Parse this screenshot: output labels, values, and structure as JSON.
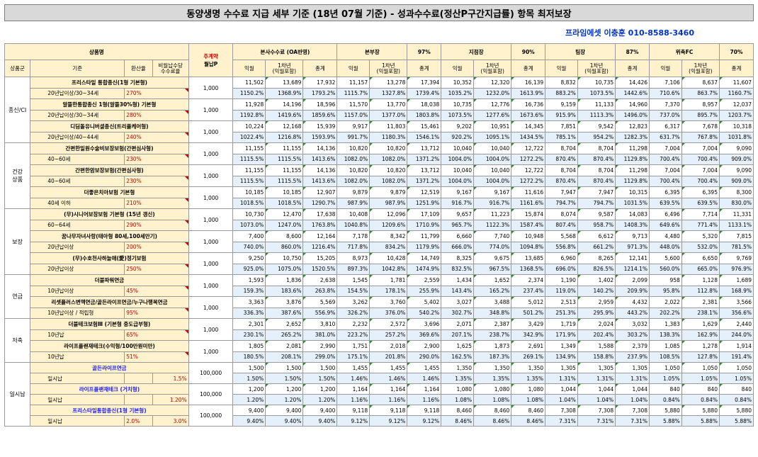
{
  "title": "동양생명 수수료 지급 세부 기준 (18년 07월 기준) - 성과수수료(정산P구간지급률) 항목 최저보장",
  "author": "프라임에셋 이충훈 010-8588-3460",
  "headers": {
    "product": "상품명",
    "premium_top": "주계약",
    "premium_bottom": "월납P",
    "group": "상품군",
    "criteria": "기준",
    "conversion": "환산율",
    "ratio": "비월납수당\n수수료율",
    "tiers": [
      {
        "name": "본사수수료 (OA반영)",
        "pct": ""
      },
      {
        "name": "본부장",
        "pct": "97%"
      },
      {
        "name": "지점장",
        "pct": "90%"
      },
      {
        "name": "팀장",
        "pct": "87%"
      },
      {
        "name": "위촉FC",
        "pct": "70%"
      }
    ],
    "sub": [
      "익월",
      "1차년\n(익월포함)",
      "총계"
    ]
  },
  "groups": [
    {
      "name": "종신/CI",
      "products": [
        {
          "name": "프리스타일 통합종신(1형 기본형)",
          "cond": "20년납이상/30~34세",
          "conv": "270%",
          "conv2": "",
          "prem": "1,000",
          "v": [
            "11,502",
            "13,689",
            "17,932",
            "11,157",
            "13,278",
            "17,394",
            "10,352",
            "12,320",
            "16,139",
            "8,832",
            "10,735",
            "14,426",
            "7,106",
            "8,637",
            "11,607"
          ],
          "p": [
            "1150.2%",
            "1368.9%",
            "1793.2%",
            "1115.7%",
            "1327.8%",
            "1739.4%",
            "1035.2%",
            "1232.0%",
            "1613.9%",
            "883.2%",
            "1073.5%",
            "1442.6%",
            "710.6%",
            "863.7%",
            "1160.7%"
          ]
        },
        {
          "name": "알뜰한통합종신 1형(알뜰30%형) 기본형",
          "cond": "20년납이상/30~34세",
          "conv": "280%",
          "conv2": "",
          "prem": "1,000",
          "v": [
            "11,928",
            "14,196",
            "18,596",
            "11,570",
            "13,770",
            "18,038",
            "10,735",
            "12,776",
            "16,736",
            "9,159",
            "11,133",
            "14,960",
            "7,370",
            "8,957",
            "12,037"
          ],
          "p": [
            "1192.8%",
            "1419.6%",
            "1859.6%",
            "1157.0%",
            "1377.0%",
            "1803.8%",
            "1073.5%",
            "1277.6%",
            "1673.6%",
            "915.9%",
            "1113.3%",
            "1496.0%",
            "737.0%",
            "895.7%",
            "1203.7%"
          ]
        },
        {
          "name": "디딤돌유니버셜종신(트리플케어형)",
          "cond": "20년납이상/40~44세",
          "conv": "240%",
          "conv2": "",
          "prem": "1,000",
          "v": [
            "10,224",
            "12,168",
            "15,939",
            "9,917",
            "11,803",
            "15,461",
            "9,202",
            "10,951",
            "14,345",
            "7,851",
            "9,542",
            "12,823",
            "6,317",
            "7,678",
            "10,318"
          ],
          "p": [
            "1022.4%",
            "1216.8%",
            "1593.9%",
            "991.7%",
            "1180.3%",
            "1546.1%",
            "920.2%",
            "1095.1%",
            "1434.5%",
            "785.1%",
            "954.2%",
            "1282.3%",
            "631.7%",
            "767.8%",
            "1031.8%"
          ]
        }
      ]
    },
    {
      "name": "건강\n상품",
      "products": [
        {
          "name": "간편한일원수술비보장보험(간편심사형)",
          "cond": "40~60세",
          "conv": "230%",
          "conv2": "",
          "prem": "1,000",
          "v": [
            "11,155",
            "11,155",
            "14,136",
            "10,820",
            "10,820",
            "13,712",
            "10,040",
            "10,040",
            "12,722",
            "8,704",
            "8,704",
            "11,298",
            "7,004",
            "7,004",
            "9,090"
          ],
          "p": [
            "1115.5%",
            "1115.5%",
            "1413.6%",
            "1082.0%",
            "1082.0%",
            "1371.2%",
            "1004.0%",
            "1004.0%",
            "1272.2%",
            "870.4%",
            "870.4%",
            "1129.8%",
            "700.4%",
            "700.4%",
            "909.0%"
          ]
        },
        {
          "name": "간편한암보장보험(간편심사형)",
          "cond": "40~60세",
          "conv": "230%",
          "conv2": "",
          "prem": "1,000",
          "v": [
            "11,155",
            "11,155",
            "14,136",
            "10,820",
            "10,820",
            "13,712",
            "10,040",
            "10,040",
            "12,722",
            "8,704",
            "8,704",
            "11,298",
            "7,004",
            "7,004",
            "9,090"
          ],
          "p": [
            "1115.5%",
            "1115.5%",
            "1413.6%",
            "1082.0%",
            "1082.0%",
            "1371.2%",
            "1004.0%",
            "1004.0%",
            "1272.2%",
            "870.4%",
            "870.4%",
            "1129.8%",
            "700.4%",
            "700.4%",
            "909.0%"
          ]
        },
        {
          "name": "더좋은치아보험 기본형",
          "cond": "40세 이하",
          "conv": "210%",
          "conv2": "",
          "prem": "1,000",
          "v": [
            "10,185",
            "10,185",
            "12,907",
            "9,879",
            "9,879",
            "12,519",
            "9,167",
            "9,167",
            "11,616",
            "7,947",
            "7,947",
            "10,315",
            "6,395",
            "6,395",
            "8,300"
          ],
          "p": [
            "1018.5%",
            "1018.5%",
            "1290.7%",
            "987.9%",
            "987.9%",
            "1251.9%",
            "916.7%",
            "916.7%",
            "1161.6%",
            "794.7%",
            "794.7%",
            "1031.5%",
            "639.5%",
            "639.5%",
            "830.0%"
          ]
        }
      ]
    },
    {
      "name": "보장",
      "products": [
        {
          "name": "(무)시니어보장보험 기본형 (15년 갱신)",
          "cond": "60~64세",
          "conv": "290%",
          "conv2": "",
          "prem": "1,000",
          "v": [
            "10,730",
            "12,470",
            "17,638",
            "10,408",
            "12,096",
            "17,109",
            "9,657",
            "11,223",
            "15,874",
            "8,074",
            "9,587",
            "14,083",
            "6,496",
            "7,714",
            "11,331"
          ],
          "p": [
            "1073.0%",
            "1247.0%",
            "1763.8%",
            "1040.8%",
            "1209.6%",
            "1710.9%",
            "965.7%",
            "1122.3%",
            "1587.4%",
            "807.4%",
            "958.7%",
            "1408.3%",
            "649.6%",
            "771.4%",
            "1133.1%"
          ]
        },
        {
          "name": "꿈나무자녀사랑(태아형 80세,100세만기)",
          "cond": "20년납이상",
          "conv": "200%",
          "conv2": "",
          "prem": "1,000",
          "v": [
            "7,400",
            "8,600",
            "12,164",
            "7,178",
            "8,342",
            "11,799",
            "6,660",
            "7,740",
            "10,948",
            "5,568",
            "6,612",
            "9,713",
            "4,480",
            "5,320",
            "7,815"
          ],
          "p": [
            "740.0%",
            "860.0%",
            "1216.4%",
            "717.8%",
            "834.2%",
            "1179.9%",
            "666.0%",
            "774.0%",
            "1094.8%",
            "556.8%",
            "661.2%",
            "971.3%",
            "448.0%",
            "532.0%",
            "781.5%"
          ]
        },
        {
          "name": "(무)수호천사하늘애(愛)정기보험",
          "cond": "20년납이상",
          "conv": "250%",
          "conv2": "",
          "prem": "1,000",
          "v": [
            "9,250",
            "10,750",
            "15,205",
            "8,973",
            "10,428",
            "14,749",
            "8,325",
            "9,675",
            "13,685",
            "6,960",
            "8,265",
            "12,141",
            "5,600",
            "6,650",
            "9,769"
          ],
          "p": [
            "925.0%",
            "1075.0%",
            "1520.5%",
            "897.3%",
            "1042.8%",
            "1474.9%",
            "832.5%",
            "967.5%",
            "1368.5%",
            "696.0%",
            "826.5%",
            "1214.1%",
            "560.0%",
            "665.0%",
            "976.9%"
          ]
        }
      ]
    },
    {
      "name": "연금",
      "products": [
        {
          "name": "더블파워연금",
          "cond": "10년납이상",
          "conv": "45%",
          "conv2": "",
          "prem": "1,000",
          "v": [
            "1,593",
            "1,836",
            "2,638",
            "1,545",
            "1,781",
            "2,559",
            "1,434",
            "1,652",
            "2,374",
            "1,190",
            "1,402",
            "2,099",
            "958",
            "1,128",
            "1,689"
          ],
          "p": [
            "159.3%",
            "183.6%",
            "263.8%",
            "154.5%",
            "178.1%",
            "255.9%",
            "143.4%",
            "165.2%",
            "237.4%",
            "119.0%",
            "140.2%",
            "209.9%",
            "95.8%",
            "112.8%",
            "168.9%"
          ]
        },
        {
          "name": "리셋플러스변액연금/골든라이프연금/누구나행복연금",
          "cond": "10년납이상 / 적립형",
          "conv": "95%",
          "conv2": "",
          "prem": "1,000",
          "v": [
            "3,363",
            "3,876",
            "5,569",
            "3,262",
            "3,760",
            "5,402",
            "3,027",
            "3,488",
            "5,012",
            "2,513",
            "2,959",
            "4,432",
            "2,022",
            "2,381",
            "3,566"
          ],
          "p": [
            "336.3%",
            "387.6%",
            "556.9%",
            "326.2%",
            "376.0%",
            "540.2%",
            "302.7%",
            "348.8%",
            "501.2%",
            "251.3%",
            "295.9%",
            "443.2%",
            "202.2%",
            "238.1%",
            "356.6%"
          ]
        }
      ]
    },
    {
      "name": "저축",
      "products": [
        {
          "name": "더블테크보험Ⅲ (기본형 중도급부형)",
          "cond": "10년납",
          "conv": "65%",
          "conv2": "",
          "prem": "1,000",
          "v": [
            "2,301",
            "2,652",
            "3,810",
            "2,232",
            "2,572",
            "3,696",
            "2,071",
            "2,387",
            "3,429",
            "1,719",
            "2,024",
            "3,032",
            "1,383",
            "1,629",
            "2,440"
          ],
          "p": [
            "230.1%",
            "265.2%",
            "381.0%",
            "223.2%",
            "257.2%",
            "369.6%",
            "207.1%",
            "238.7%",
            "342.9%",
            "171.9%",
            "202.4%",
            "303.2%",
            "138.3%",
            "162.9%",
            "244.0%"
          ]
        },
        {
          "name": "라이프플랜재테크(수익형/100만원미만)",
          "cond": "10년납",
          "conv": "51%",
          "conv2": "",
          "prem": "1,000",
          "v": [
            "1,805",
            "2,081",
            "2,990",
            "1,751",
            "2,018",
            "2,900",
            "1,625",
            "1,873",
            "2,691",
            "1,349",
            "1,588",
            "2,379",
            "1,085",
            "1,278",
            "1,914"
          ],
          "p": [
            "180.5%",
            "208.1%",
            "299.0%",
            "175.1%",
            "201.8%",
            "290.0%",
            "162.5%",
            "187.3%",
            "269.1%",
            "134.9%",
            "158.8%",
            "237.9%",
            "108.5%",
            "127.8%",
            "191.4%"
          ]
        }
      ]
    },
    {
      "name": "일시납",
      "products": [
        {
          "name": "골든라이프연금",
          "cond": "일시납",
          "conv": "",
          "conv2": "1.5%",
          "prem": "100,000",
          "life": true,
          "v": [
            "1,500",
            "1,500",
            "1,500",
            "1,455",
            "1,455",
            "1,455",
            "1,350",
            "1,350",
            "1,350",
            "1,305",
            "1,305",
            "1,305",
            "1,050",
            "1,050",
            "1,050"
          ],
          "p": [
            "1.50%",
            "1.50%",
            "1.50%",
            "1.46%",
            "1.46%",
            "1.46%",
            "1.35%",
            "1.35%",
            "1.35%",
            "1.31%",
            "1.31%",
            "1.31%",
            "1.05%",
            "1.05%",
            "1.05%"
          ]
        },
        {
          "name": "라이프플랜재테크 (거치형)",
          "cond": "일시납",
          "conv": "",
          "conv2": "1.20%",
          "prem": "100,000",
          "life": true,
          "v": [
            "1,200",
            "1,200",
            "1,200",
            "1,164",
            "1,164",
            "1,164",
            "1,080",
            "1,080",
            "1,080",
            "1,044",
            "1,044",
            "1,044",
            "840",
            "840",
            "840"
          ],
          "p": [
            "1.20%",
            "1.20%",
            "1.20%",
            "1.16%",
            "1.16%",
            "1.16%",
            "1.08%",
            "1.08%",
            "1.08%",
            "1.04%",
            "1.04%",
            "1.04%",
            "0.84%",
            "0.84%",
            "0.84%"
          ]
        },
        {
          "name": "프리스타일통합종신(1형 기본형)",
          "cond": "일시납",
          "conv": "2.0%",
          "conv2": "3.0%",
          "prem": "100,000",
          "life": true,
          "v": [
            "9,400",
            "9,400",
            "9,400",
            "9,118",
            "9,118",
            "9,118",
            "8,460",
            "8,460",
            "8,460",
            "7,308",
            "7,308",
            "7,308",
            "5,880",
            "5,880",
            "5,880"
          ],
          "p": [
            "9.40%",
            "9.40%",
            "9.40%",
            "9.12%",
            "9.12%",
            "9.12%",
            "8.46%",
            "8.46%",
            "8.46%",
            "7.31%",
            "7.31%",
            "7.31%",
            "5.88%",
            "5.88%",
            "5.88%"
          ]
        }
      ]
    }
  ]
}
